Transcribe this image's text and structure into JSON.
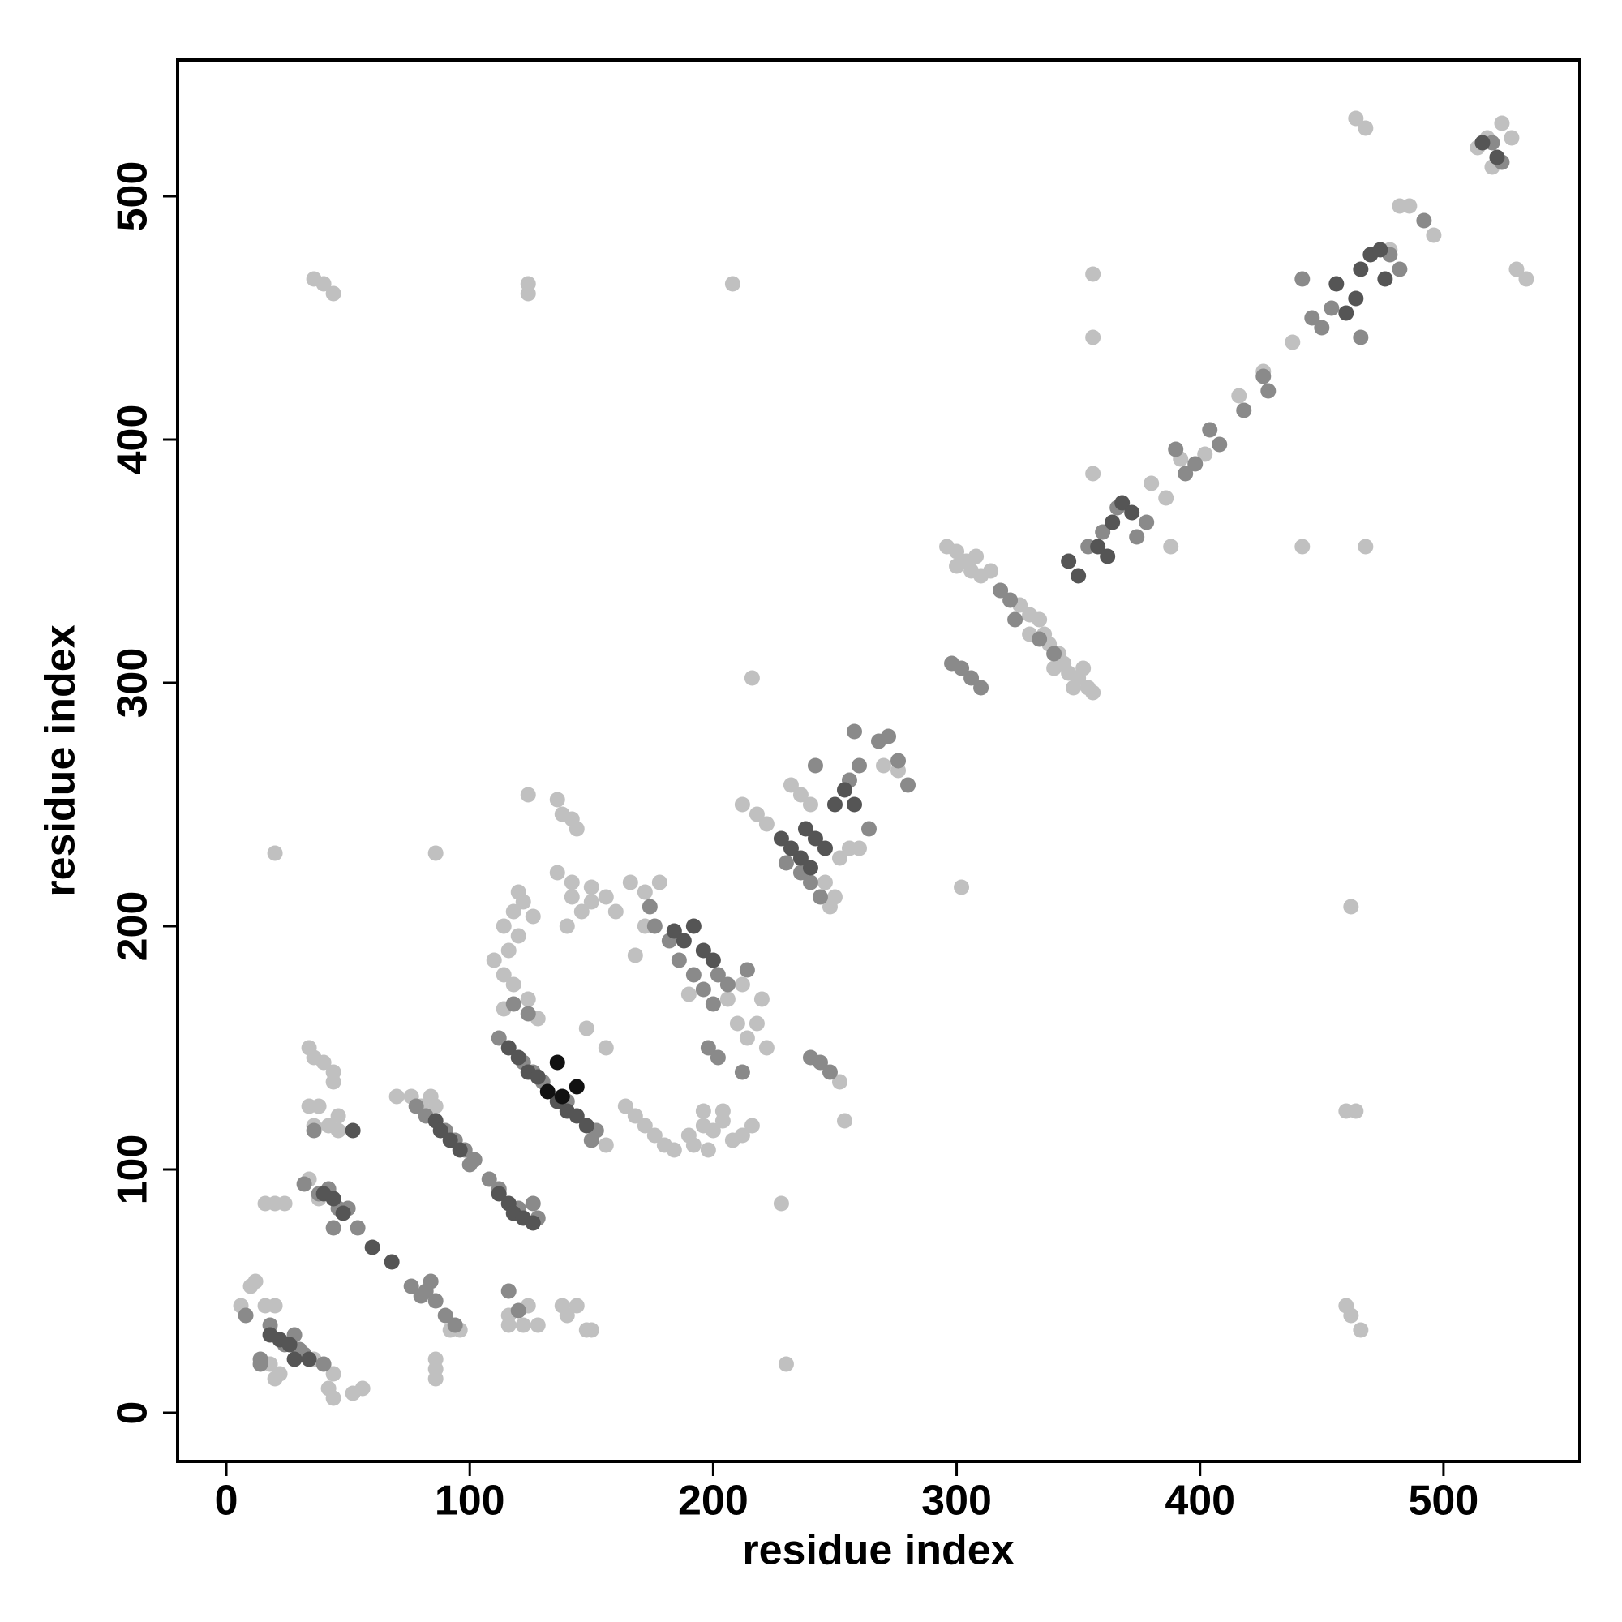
{
  "chart_data": {
    "type": "scatter",
    "xlabel": "residue index",
    "ylabel": "residue index",
    "xlim": [
      -20,
      556
    ],
    "ylim": [
      -20,
      556
    ],
    "xticks": [
      0,
      100,
      200,
      300,
      400,
      500
    ],
    "yticks": [
      0,
      100,
      200,
      300,
      400,
      500
    ],
    "grid": false,
    "series": [
      {
        "color": "#c0c0c0",
        "x": [
          6,
          10,
          12,
          16,
          20,
          18,
          22,
          20,
          36,
          44,
          42,
          44,
          52,
          56,
          16,
          20,
          24,
          34,
          36,
          40,
          44,
          44,
          34,
          38,
          36,
          42,
          46,
          46,
          34,
          38,
          70,
          76,
          80,
          84,
          86,
          86,
          86,
          86,
          96,
          92,
          116,
          116,
          122,
          124,
          128,
          138,
          140,
          144,
          148,
          150,
          118,
          122,
          126,
          114,
          120,
          116,
          114,
          118,
          124,
          128,
          114,
          110,
          120,
          142,
          146,
          150,
          140,
          136,
          142,
          150,
          156,
          160,
          166,
          172,
          178,
          164,
          168,
          172,
          176,
          180,
          184,
          190,
          196,
          200,
          204,
          208,
          212,
          216,
          198,
          192,
          196,
          204,
          168,
          172,
          190,
          206,
          210,
          214,
          218,
          222,
          220,
          212,
          124,
          136,
          138,
          142,
          144,
          148,
          156,
          156,
          232,
          236,
          240,
          212,
          218,
          222,
          246,
          250,
          252,
          256,
          260,
          248,
          270,
          276,
          296,
          300,
          304,
          306,
          310,
          300,
          308,
          314,
          318,
          326,
          330,
          334,
          336,
          338,
          342,
          344,
          346,
          350,
          354,
          356,
          348,
          352,
          340,
          330,
          356,
          356,
          356,
          388,
          442,
          468,
          464,
          468,
          380,
          386,
          392,
          402,
          416,
          426,
          438,
          478,
          482,
          486,
          496,
          514,
          518,
          524,
          528,
          520,
          530,
          534,
          36,
          40,
          44,
          124,
          124,
          208,
          20,
          86,
          228,
          230,
          302,
          216,
          254,
          252,
          460,
          462,
          466,
          462,
          460,
          464
        ],
        "y": [
          44,
          52,
          54,
          44,
          44,
          20,
          16,
          14,
          22,
          16,
          10,
          6,
          8,
          10,
          86,
          86,
          86,
          150,
          146,
          144,
          140,
          136,
          126,
          126,
          118,
          118,
          122,
          116,
          96,
          88,
          130,
          130,
          126,
          130,
          126,
          22,
          18,
          14,
          34,
          34,
          40,
          36,
          36,
          44,
          36,
          44,
          40,
          44,
          34,
          34,
          206,
          210,
          204,
          200,
          196,
          190,
          180,
          176,
          170,
          162,
          166,
          186,
          214,
          212,
          206,
          210,
          200,
          222,
          218,
          216,
          212,
          206,
          218,
          214,
          218,
          126,
          122,
          118,
          114,
          110,
          108,
          114,
          118,
          116,
          120,
          112,
          114,
          118,
          108,
          110,
          124,
          124,
          188,
          200,
          172,
          170,
          160,
          154,
          160,
          150,
          170,
          176,
          254,
          252,
          246,
          244,
          240,
          158,
          150,
          110,
          258,
          254,
          250,
          250,
          246,
          242,
          218,
          212,
          228,
          232,
          232,
          208,
          266,
          264,
          356,
          354,
          350,
          346,
          344,
          348,
          352,
          346,
          338,
          332,
          328,
          326,
          320,
          316,
          312,
          308,
          304,
          302,
          298,
          296,
          298,
          306,
          306,
          320,
          386,
          442,
          468,
          356,
          356,
          356,
          532,
          528,
          382,
          376,
          392,
          394,
          418,
          428,
          440,
          478,
          496,
          496,
          484,
          520,
          524,
          530,
          524,
          512,
          470,
          466,
          466,
          464,
          460,
          464,
          460,
          464,
          230,
          230,
          86,
          20,
          216,
          302,
          120,
          136,
          44,
          40,
          34,
          208,
          124,
          124
        ]
      },
      {
        "color": "#8a8a8a",
        "x": [
          8,
          14,
          14,
          18,
          24,
          28,
          30,
          32,
          40,
          32,
          38,
          42,
          46,
          50,
          54,
          44,
          36,
          76,
          80,
          84,
          86,
          90,
          94,
          82,
          78,
          82,
          90,
          94,
          98,
          102,
          100,
          108,
          112,
          120,
          126,
          128,
          116,
          120,
          112,
          122,
          126,
          130,
          140,
          152,
          150,
          118,
          124,
          176,
          182,
          186,
          192,
          196,
          200,
          202,
          206,
          214,
          174,
          198,
          202,
          212,
          230,
          236,
          240,
          244,
          256,
          260,
          268,
          272,
          276,
          280,
          258,
          264,
          242,
          240,
          244,
          248,
          298,
          302,
          306,
          310,
          318,
          322,
          324,
          334,
          340,
          354,
          360,
          366,
          374,
          378,
          390,
          394,
          398,
          404,
          408,
          418,
          426,
          428,
          442,
          446,
          450,
          454,
          466,
          478,
          482,
          492,
          520,
          524
        ],
        "y": [
          40,
          22,
          20,
          36,
          28,
          32,
          26,
          24,
          20,
          94,
          90,
          92,
          84,
          84,
          76,
          76,
          116,
          52,
          48,
          54,
          46,
          40,
          36,
          50,
          126,
          122,
          116,
          112,
          108,
          104,
          102,
          96,
          92,
          84,
          86,
          80,
          50,
          42,
          154,
          144,
          140,
          136,
          128,
          116,
          112,
          168,
          164,
          200,
          194,
          186,
          180,
          174,
          168,
          180,
          176,
          182,
          208,
          150,
          146,
          140,
          226,
          222,
          218,
          212,
          260,
          266,
          276,
          278,
          268,
          258,
          280,
          240,
          266,
          146,
          144,
          140,
          308,
          306,
          302,
          298,
          338,
          334,
          326,
          318,
          312,
          356,
          362,
          372,
          360,
          366,
          396,
          386,
          390,
          404,
          398,
          412,
          426,
          420,
          466,
          450,
          446,
          454,
          442,
          476,
          470,
          490,
          522,
          514
        ]
      },
      {
        "color": "#555555",
        "x": [
          18,
          22,
          26,
          28,
          34,
          40,
          44,
          48,
          52,
          60,
          68,
          86,
          88,
          92,
          96,
          112,
          116,
          118,
          122,
          126,
          116,
          120,
          124,
          128,
          136,
          140,
          144,
          148,
          184,
          188,
          192,
          196,
          200,
          228,
          232,
          236,
          240,
          238,
          242,
          246,
          250,
          254,
          258,
          346,
          350,
          358,
          362,
          364,
          368,
          372,
          460,
          464,
          466,
          470,
          474,
          476,
          456,
          516,
          522
        ],
        "y": [
          32,
          30,
          28,
          22,
          22,
          90,
          88,
          82,
          116,
          68,
          62,
          120,
          116,
          112,
          108,
          90,
          86,
          82,
          80,
          78,
          150,
          146,
          140,
          138,
          128,
          124,
          122,
          118,
          198,
          194,
          200,
          190,
          186,
          236,
          232,
          228,
          224,
          240,
          236,
          232,
          250,
          256,
          250,
          350,
          344,
          356,
          352,
          366,
          374,
          370,
          452,
          458,
          470,
          476,
          478,
          466,
          464,
          522,
          516
        ]
      },
      {
        "color": "#111111",
        "x": [
          132,
          136,
          138,
          144
        ],
        "y": [
          132,
          144,
          130,
          134
        ]
      }
    ]
  }
}
